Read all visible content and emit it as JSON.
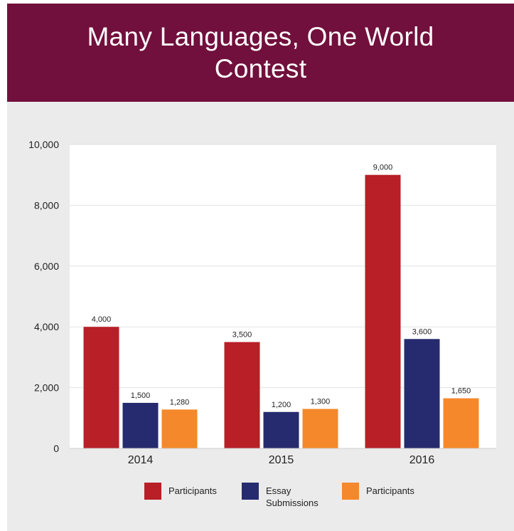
{
  "title": "Many Languages, One World Contest",
  "colors": {
    "header_bg": "#71103c",
    "panel_bg": "#ebebeb",
    "plot_bg": "#ffffff"
  },
  "chart_data": {
    "type": "bar",
    "categories": [
      "2014",
      "2015",
      "2016"
    ],
    "series": [
      {
        "name": "Participants",
        "color": "#b81f27",
        "values": [
          4000,
          3500,
          9000
        ]
      },
      {
        "name": "Essay Submissions",
        "color": "#262a6e",
        "values": [
          1500,
          1200,
          3600
        ]
      },
      {
        "name": "Participants",
        "color": "#f5882a",
        "values": [
          1280,
          1300,
          1650
        ]
      }
    ],
    "data_labels": [
      [
        "4,000",
        "3,500",
        "9,000"
      ],
      [
        "1,500",
        "1,200",
        "3,600"
      ],
      [
        "1,280",
        "1,300",
        "1,650"
      ]
    ],
    "ylim": [
      0,
      10000
    ],
    "yticks": [
      0,
      2000,
      4000,
      6000,
      8000,
      10000
    ],
    "ytick_labels": [
      "0",
      "2,000",
      "4,000",
      "6,000",
      "8,000",
      "10,000"
    ],
    "grid": true,
    "legend_position": "bottom"
  }
}
